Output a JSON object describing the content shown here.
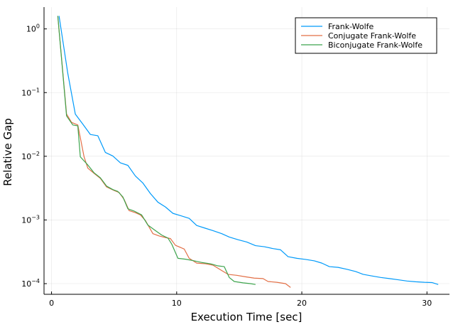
{
  "chart_data": {
    "type": "line",
    "title": "",
    "xlabel": "Execution Time [sec]",
    "ylabel": "Relative Gap",
    "x_scale": "linear",
    "y_scale": "log",
    "xlim": [
      -0.6,
      31.8
    ],
    "ylim": [
      6.8e-05,
      2.2
    ],
    "x_ticks": [
      0,
      10,
      20,
      30
    ],
    "x_tick_labels": [
      "0",
      "10",
      "20",
      "30"
    ],
    "y_ticks": [
      1,
      0.1,
      0.01,
      0.001,
      0.0001
    ],
    "y_tick_labels": [
      {
        "base": "10",
        "exp": "0"
      },
      {
        "base": "10",
        "exp": "−1"
      },
      {
        "base": "10",
        "exp": "−2"
      },
      {
        "base": "10",
        "exp": "−3"
      },
      {
        "base": "10",
        "exp": "−4"
      }
    ],
    "grid": true,
    "legend": "top-right",
    "series": [
      {
        "name": "Frank-Wolfe",
        "color": "#009AFA",
        "points": [
          [
            0.6,
            1.6
          ],
          [
            1.3,
            0.2
          ],
          [
            1.9,
            0.046
          ],
          [
            2.5,
            0.032
          ],
          [
            3.1,
            0.022
          ],
          [
            3.7,
            0.021
          ],
          [
            4.3,
            0.0115
          ],
          [
            4.9,
            0.0101
          ],
          [
            5.5,
            0.0079
          ],
          [
            6.1,
            0.0072
          ],
          [
            6.7,
            0.0049
          ],
          [
            7.3,
            0.0038
          ],
          [
            7.9,
            0.0026
          ],
          [
            8.5,
            0.0019
          ],
          [
            9.1,
            0.0016
          ],
          [
            9.7,
            0.00127
          ],
          [
            10.3,
            0.00117
          ],
          [
            11.0,
            0.00106
          ],
          [
            11.6,
            0.00082
          ],
          [
            12.3,
            0.00074
          ],
          [
            12.9,
            0.00068
          ],
          [
            13.6,
            0.00061
          ],
          [
            14.2,
            0.00054
          ],
          [
            14.9,
            0.00049
          ],
          [
            15.6,
            0.00045
          ],
          [
            16.3,
            0.000395
          ],
          [
            17.0,
            0.00038
          ],
          [
            17.7,
            0.000355
          ],
          [
            18.3,
            0.00034
          ],
          [
            18.9,
            0.000265
          ],
          [
            19.6,
            0.00025
          ],
          [
            20.3,
            0.00024
          ],
          [
            21.0,
            0.000228
          ],
          [
            21.6,
            0.00021
          ],
          [
            22.2,
            0.000185
          ],
          [
            22.9,
            0.00018
          ],
          [
            23.6,
            0.000168
          ],
          [
            24.3,
            0.000155
          ],
          [
            24.9,
            0.00014
          ],
          [
            25.6,
            0.000132
          ],
          [
            26.3,
            0.000125
          ],
          [
            27.0,
            0.00012
          ],
          [
            27.7,
            0.000115
          ],
          [
            28.4,
            0.00011
          ],
          [
            29.1,
            0.000107
          ],
          [
            29.8,
            0.000105
          ],
          [
            30.4,
            0.000104
          ],
          [
            30.9,
            9.7e-05
          ]
        ]
      },
      {
        "name": "Conjugate Frank-Wolfe",
        "color": "#E26F46",
        "points": [
          [
            0.5,
            1.6
          ],
          [
            1.2,
            0.046
          ],
          [
            1.6,
            0.034
          ],
          [
            2.1,
            0.031
          ],
          [
            2.6,
            0.0098
          ],
          [
            2.9,
            0.0065
          ],
          [
            3.5,
            0.0052
          ],
          [
            3.9,
            0.0045
          ],
          [
            4.4,
            0.0033
          ],
          [
            5.0,
            0.0029
          ],
          [
            5.4,
            0.0027
          ],
          [
            5.8,
            0.0021
          ],
          [
            6.2,
            0.0014
          ],
          [
            6.7,
            0.0013
          ],
          [
            7.1,
            0.0012
          ],
          [
            7.5,
            0.00098
          ],
          [
            8.1,
            0.00061
          ],
          [
            8.6,
            0.00056
          ],
          [
            9.1,
            0.00053
          ],
          [
            9.5,
            0.00051
          ],
          [
            9.9,
            0.0004
          ],
          [
            10.6,
            0.00035
          ],
          [
            11.0,
            0.00025
          ],
          [
            11.6,
            0.00021
          ],
          [
            12.3,
            0.000205
          ],
          [
            12.9,
            0.000195
          ],
          [
            13.5,
            0.000165
          ],
          [
            14.1,
            0.00014
          ],
          [
            14.8,
            0.000135
          ],
          [
            15.5,
            0.000128
          ],
          [
            16.2,
            0.000122
          ],
          [
            16.9,
            0.00012
          ],
          [
            17.3,
            0.000108
          ],
          [
            18.0,
            0.000105
          ],
          [
            18.7,
            0.0001
          ],
          [
            19.1,
            8.7e-05
          ]
        ]
      },
      {
        "name": "Biconjugate Frank-Wolfe",
        "color": "#3DA44D",
        "points": [
          [
            0.5,
            1.6
          ],
          [
            1.2,
            0.043
          ],
          [
            1.7,
            0.031
          ],
          [
            2.1,
            0.03
          ],
          [
            2.3,
            0.0098
          ],
          [
            2.9,
            0.0073
          ],
          [
            3.4,
            0.0055
          ],
          [
            3.9,
            0.0046
          ],
          [
            4.4,
            0.0034
          ],
          [
            4.9,
            0.003
          ],
          [
            5.3,
            0.0028
          ],
          [
            5.7,
            0.0023
          ],
          [
            6.1,
            0.0015
          ],
          [
            6.6,
            0.00138
          ],
          [
            7.2,
            0.0012
          ],
          [
            7.7,
            0.00083
          ],
          [
            8.3,
            0.00068
          ],
          [
            8.8,
            0.00058
          ],
          [
            9.3,
            0.00052
          ],
          [
            9.6,
            0.00042
          ],
          [
            10.1,
            0.00025
          ],
          [
            10.7,
            0.000242
          ],
          [
            11.3,
            0.00023
          ],
          [
            12.0,
            0.000215
          ],
          [
            12.7,
            0.000205
          ],
          [
            13.3,
            0.00019
          ],
          [
            13.8,
            0.000185
          ],
          [
            14.2,
            0.000125
          ],
          [
            14.6,
            0.000108
          ],
          [
            15.3,
            0.000103
          ],
          [
            15.9,
            0.0001
          ],
          [
            16.3,
            9.7e-05
          ]
        ]
      }
    ]
  }
}
